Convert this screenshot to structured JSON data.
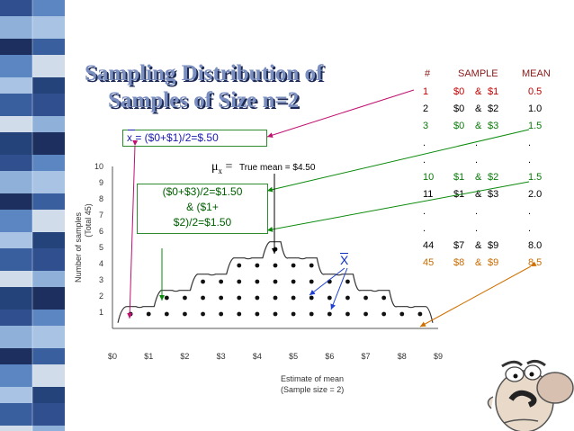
{
  "title": {
    "line1": "Sampling Distribution of",
    "line2": "Samples of Size n=2"
  },
  "table": {
    "headers": [
      "#",
      "SAMPLE",
      "MEAN"
    ],
    "rows": [
      {
        "num": "1",
        "a": "$0",
        "amp": "&",
        "b": "$1",
        "mean": "0.5",
        "color": "#c00000"
      },
      {
        "num": "2",
        "a": "$0",
        "amp": "&",
        "b": "$2",
        "mean": "1.0",
        "color": "#000000"
      },
      {
        "num": "3",
        "a": "$0",
        "amp": "&",
        "b": "$3",
        "mean": "1.5",
        "color": "#0a7a0a"
      },
      {
        "num": ".",
        "a": "",
        "amp": ".",
        "b": "",
        "mean": ".",
        "color": "#000000"
      },
      {
        "num": ".",
        "a": "",
        "amp": ".",
        "b": "",
        "mean": ".",
        "color": "#000000"
      },
      {
        "num": "10",
        "a": "$1",
        "amp": "&",
        "b": "$2",
        "mean": "1.5",
        "color": "#0a7a0a"
      },
      {
        "num": "11",
        "a": "$1",
        "amp": "&",
        "b": "$3",
        "mean": "2.0",
        "color": "#000000"
      },
      {
        "num": ".",
        "a": "",
        "amp": ".",
        "b": "",
        "mean": ".",
        "color": "#000000"
      },
      {
        "num": ".",
        "a": "",
        "amp": ".",
        "b": "",
        "mean": ".",
        "color": "#000000"
      },
      {
        "num": "44",
        "a": "$7",
        "amp": "&",
        "b": "$9",
        "mean": "8.0",
        "color": "#000000"
      },
      {
        "num": "45",
        "a": "$8",
        "amp": "&",
        "b": "$9",
        "mean": "8.5",
        "color": "#c86a00"
      }
    ]
  },
  "annotations": {
    "mean_formula": "x = ($0+$1)/2=$.50",
    "mu_symbol": "μ",
    "mu_sub": "x",
    "equals": "=",
    "true_mean": "True mean = $4.50",
    "box2_line1": "($0+$3)/2=$1.50",
    "box2_line2": "& ($1+",
    "box2_line3": "$2)/2=$1.50",
    "xbar": "X"
  },
  "chart_data": {
    "type": "scatter",
    "ylabel_line1": "Number of samples",
    "ylabel_line2": "(Total   45)",
    "xlabel_line1": "Estimate of mean",
    "xlabel_line2": "(Sample size = 2)",
    "y_ticks": [
      "1",
      "2",
      "3",
      "4",
      "5",
      "6",
      "7",
      "8",
      "9",
      "10"
    ],
    "x_ticks": [
      "$0",
      "$1",
      "$2",
      "$3",
      "$4",
      "$5",
      "$6",
      "$7",
      "$8",
      "$9"
    ],
    "x": [
      0.5,
      1.0,
      1.5,
      2.0,
      2.5,
      3.0,
      3.5,
      4.0,
      4.5,
      5.0,
      5.5,
      6.0,
      6.5,
      7.0,
      7.5,
      8.0,
      8.5
    ],
    "counts": [
      1,
      1,
      2,
      2,
      3,
      3,
      4,
      4,
      5,
      4,
      4,
      3,
      3,
      2,
      2,
      1,
      1
    ],
    "xlim": [
      0,
      9
    ],
    "ylim": [
      0,
      10
    ]
  },
  "colors": {
    "title_fill": "#7a8fc0",
    "title_shadow": "#1d2a55",
    "arrow_red": "#c01070",
    "arrow_green": "#0a8a0a",
    "arrow_blue": "#2040d0",
    "arrow_orange": "#d07000"
  }
}
